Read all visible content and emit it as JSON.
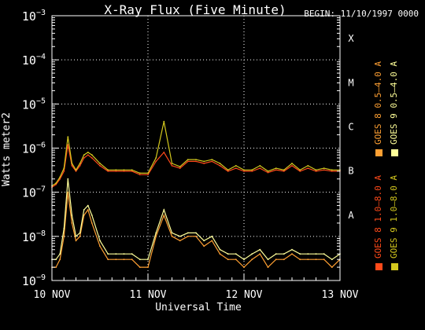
{
  "chart_data": {
    "type": "line",
    "title": "X-Ray Flux (Five Minute)",
    "begin_label": "BEGIN: 11/10/1997 0000",
    "xlabel": "Universal Time",
    "ylabel": "Watts meter2",
    "x_unit": "hours since 10 NOV 00 UT",
    "xlim": [
      0,
      72
    ],
    "ylim": [
      1e-09,
      0.001
    ],
    "yscale": "log",
    "x_ticks": [
      {
        "x": 0,
        "label": "10 NOV"
      },
      {
        "x": 24,
        "label": "11 NOV"
      },
      {
        "x": 48,
        "label": "12 NOV"
      },
      {
        "x": 72,
        "label": "13 NOV"
      }
    ],
    "y_ticks": [
      {
        "exp": -9,
        "base": "10",
        "sup": "−9"
      },
      {
        "exp": -8,
        "base": "10",
        "sup": "−8"
      },
      {
        "exp": -7,
        "base": "10",
        "sup": "−7"
      },
      {
        "exp": -6,
        "base": "10",
        "sup": "−6"
      },
      {
        "exp": -5,
        "base": "10",
        "sup": "−5"
      },
      {
        "exp": -4,
        "base": "10",
        "sup": "−4"
      },
      {
        "exp": -3,
        "base": "10",
        "sup": "−3"
      }
    ],
    "flare_classes": [
      {
        "label": "X",
        "exp": -4
      },
      {
        "label": "M",
        "exp": -5
      },
      {
        "label": "C",
        "exp": -6
      },
      {
        "label": "B",
        "exp": -7
      },
      {
        "label": "A",
        "exp": -8
      }
    ],
    "grid": true,
    "legend_position": "right, vertical",
    "series": [
      {
        "name": "GOES 8 1.0–8.0 A",
        "color": "#ff4a1a",
        "x": [
          0,
          1,
          2,
          3,
          4,
          5,
          6,
          7,
          8,
          9,
          10,
          12,
          14,
          16,
          18,
          20,
          22,
          24,
          26,
          28,
          30,
          32,
          34,
          36,
          38,
          40,
          42,
          44,
          46,
          48,
          50,
          52,
          54,
          56,
          58,
          60,
          62,
          64,
          66,
          68,
          70,
          72
        ],
        "y": [
          1.3e-07,
          1.5e-07,
          2e-07,
          3e-07,
          1.2e-06,
          4e-07,
          3e-07,
          4e-07,
          6e-07,
          7e-07,
          6e-07,
          4e-07,
          3e-07,
          3e-07,
          3e-07,
          3e-07,
          2.5e-07,
          2.5e-07,
          5e-07,
          8e-07,
          4e-07,
          3.5e-07,
          5e-07,
          5e-07,
          4.5e-07,
          5e-07,
          4e-07,
          3e-07,
          3.5e-07,
          3e-07,
          3e-07,
          3.5e-07,
          2.8e-07,
          3.2e-07,
          3e-07,
          4e-07,
          3e-07,
          3.5e-07,
          3e-07,
          3.2e-07,
          3e-07,
          3e-07
        ]
      },
      {
        "name": "GOES 8 0.5–4.0 A",
        "color": "#ffa033",
        "x": [
          0,
          1,
          2,
          3,
          4,
          5,
          6,
          7,
          8,
          9,
          10,
          12,
          14,
          16,
          18,
          20,
          22,
          24,
          26,
          28,
          30,
          32,
          34,
          36,
          38,
          40,
          42,
          44,
          46,
          48,
          50,
          52,
          54,
          56,
          58,
          60,
          62,
          64,
          66,
          68,
          70,
          72
        ],
        "y": [
          2e-09,
          2e-09,
          3e-09,
          1e-08,
          1e-07,
          2e-08,
          8e-09,
          1e-08,
          3e-08,
          4e-08,
          2e-08,
          6e-09,
          3e-09,
          3e-09,
          3e-09,
          3e-09,
          2e-09,
          2e-09,
          1e-08,
          3e-08,
          1e-08,
          8e-09,
          1e-08,
          1e-08,
          6e-09,
          8e-09,
          4e-09,
          3e-09,
          3e-09,
          2e-09,
          3e-09,
          4e-09,
          2e-09,
          3e-09,
          3e-09,
          4e-09,
          3e-09,
          3e-09,
          3e-09,
          3e-09,
          2e-09,
          3e-09
        ]
      },
      {
        "name": "GOES 9 0.5–4.0 A",
        "color": "#ffff99",
        "x": [
          0,
          1,
          2,
          3,
          4,
          5,
          6,
          7,
          8,
          9,
          10,
          12,
          14,
          16,
          18,
          20,
          22,
          24,
          26,
          28,
          30,
          32,
          34,
          36,
          38,
          40,
          42,
          44,
          46,
          48,
          50,
          52,
          54,
          56,
          58,
          60,
          62,
          64,
          66,
          68,
          70,
          72
        ],
        "y": [
          3e-09,
          3e-09,
          4e-09,
          1.5e-08,
          2e-07,
          3e-08,
          1e-08,
          1.2e-08,
          4e-08,
          5e-08,
          3e-08,
          8e-09,
          4e-09,
          4e-09,
          4e-09,
          4e-09,
          3e-09,
          3e-09,
          1.2e-08,
          4e-08,
          1.2e-08,
          1e-08,
          1.2e-08,
          1.2e-08,
          8e-09,
          1e-08,
          5e-09,
          4e-09,
          4e-09,
          3e-09,
          4e-09,
          5e-09,
          3e-09,
          4e-09,
          4e-09,
          5e-09,
          4e-09,
          4e-09,
          4e-09,
          4e-09,
          3e-09,
          4e-09
        ]
      },
      {
        "name": "GOES 9 1.0–8.0 A",
        "color": "#d4c81e",
        "x": [
          0,
          1,
          2,
          3,
          4,
          5,
          6,
          7,
          8,
          9,
          10,
          12,
          14,
          16,
          18,
          20,
          22,
          24,
          26,
          28,
          30,
          32,
          34,
          36,
          38,
          40,
          42,
          44,
          46,
          48,
          50,
          52,
          54,
          56,
          58,
          60,
          62,
          64,
          66,
          68,
          70,
          72
        ],
        "y": [
          1.4e-07,
          1.6e-07,
          2.2e-07,
          3.5e-07,
          1.8e-06,
          4.5e-07,
          3.2e-07,
          4.5e-07,
          7e-07,
          8e-07,
          7e-07,
          4.5e-07,
          3.2e-07,
          3.2e-07,
          3.2e-07,
          3.2e-07,
          2.7e-07,
          2.7e-07,
          6e-07,
          4e-06,
          4.5e-07,
          3.8e-07,
          5.5e-07,
          5.5e-07,
          5e-07,
          5.5e-07,
          4.5e-07,
          3.2e-07,
          4e-07,
          3.2e-07,
          3.2e-07,
          4e-07,
          3e-07,
          3.5e-07,
          3.2e-07,
          4.5e-07,
          3.2e-07,
          4e-07,
          3.2e-07,
          3.5e-07,
          3.2e-07,
          3.2e-07
        ]
      }
    ]
  }
}
